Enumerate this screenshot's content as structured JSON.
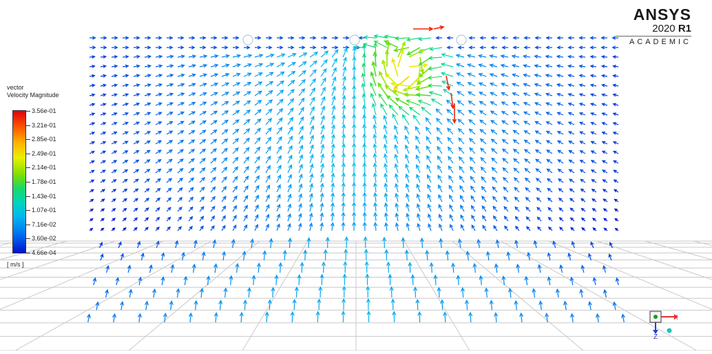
{
  "brand": {
    "name": "ANSYS",
    "version": "2020",
    "release": "R1",
    "edition": "ACADEMIC"
  },
  "legend": {
    "title_line1": "vector",
    "title_line2": "Velocity Magnitude",
    "unit": "[ m/s ]",
    "values": [
      "3.56e-01",
      "3.21e-01",
      "2.85e-01",
      "2.49e-01",
      "2.14e-01",
      "1.78e-01",
      "1.43e-01",
      "1.07e-01",
      "7.16e-02",
      "3.60e-02",
      "4.66e-04"
    ]
  },
  "triad": {
    "x_label": "X",
    "z_label": "Z"
  },
  "colors": {
    "background": "#ffffff",
    "grid_line": "#c8c8c8",
    "vector_low": "#0010d0",
    "vector_high": "#e0000a"
  },
  "icons": {
    "triad": "axis-triad-icon"
  }
}
